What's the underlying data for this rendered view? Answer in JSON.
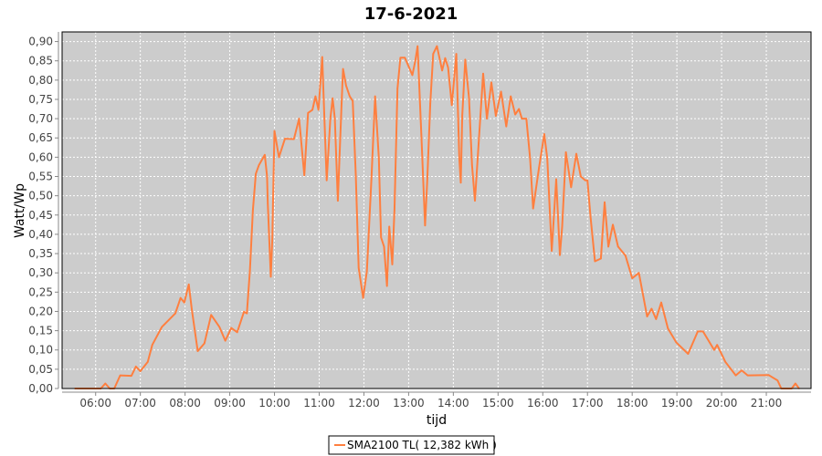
{
  "chart_data": {
    "type": "line",
    "title": "17-6-2021",
    "xlabel": "tijd",
    "ylabel": "Watt/Wp",
    "xlim": [
      "05:15",
      "22:00"
    ],
    "ylim": [
      0,
      0.925
    ],
    "grid": true,
    "legend_placement": "bottom",
    "plot_background": "#cccccc",
    "x_ticks": [
      "06:00",
      "07:00",
      "08:00",
      "09:00",
      "10:00",
      "11:00",
      "12:00",
      "13:00",
      "14:00",
      "15:00",
      "16:00",
      "17:00",
      "18:00",
      "19:00",
      "20:00",
      "21:00"
    ],
    "y_ticks": [
      "0,00",
      "0,05",
      "0,10",
      "0,15",
      "0,20",
      "0,25",
      "0,30",
      "0,35",
      "0,40",
      "0,45",
      "0,50",
      "0,55",
      "0,60",
      "0,65",
      "0,70",
      "0,75",
      "0,80",
      "0,85",
      "0,90"
    ],
    "series": [
      {
        "name": "SMA2100 TL( 12,382 kWh )",
        "color": "#ff7f3f",
        "points": [
          [
            "05:32",
            0
          ],
          [
            "06:07",
            0
          ],
          [
            "06:13",
            0.013
          ],
          [
            "06:19",
            0
          ],
          [
            "06:25",
            0
          ],
          [
            "06:33",
            0.034
          ],
          [
            "06:48",
            0.033
          ],
          [
            "06:54",
            0.057
          ],
          [
            "07:00",
            0.045
          ],
          [
            "07:10",
            0.069
          ],
          [
            "07:16",
            0.113
          ],
          [
            "07:29",
            0.16
          ],
          [
            "07:47",
            0.195
          ],
          [
            "07:54",
            0.235
          ],
          [
            "07:59",
            0.223
          ],
          [
            "08:05",
            0.27
          ],
          [
            "08:09",
            0.205
          ],
          [
            "08:17",
            0.097
          ],
          [
            "08:26",
            0.117
          ],
          [
            "08:35",
            0.191
          ],
          [
            "08:46",
            0.16
          ],
          [
            "08:54",
            0.124
          ],
          [
            "09:02",
            0.157
          ],
          [
            "09:10",
            0.146
          ],
          [
            "09:19",
            0.199
          ],
          [
            "09:23",
            0.195
          ],
          [
            "09:27",
            0.305
          ],
          [
            "09:31",
            0.463
          ],
          [
            "09:35",
            0.557
          ],
          [
            "09:39",
            0.579
          ],
          [
            "09:47",
            0.606
          ],
          [
            "09:50",
            0.55
          ],
          [
            "09:51",
            0.48
          ],
          [
            "09:55",
            0.29
          ],
          [
            "09:57",
            0.385
          ],
          [
            "10:00",
            0.668
          ],
          [
            "10:06",
            0.6
          ],
          [
            "10:14",
            0.648
          ],
          [
            "10:26",
            0.647
          ],
          [
            "10:33",
            0.7
          ],
          [
            "10:40",
            0.553
          ],
          [
            "10:45",
            0.715
          ],
          [
            "10:51",
            0.723
          ],
          [
            "10:55",
            0.758
          ],
          [
            "10:59",
            0.723
          ],
          [
            "11:04",
            0.86
          ],
          [
            "11:07",
            0.7
          ],
          [
            "11:10",
            0.54
          ],
          [
            "11:15",
            0.7
          ],
          [
            "11:18",
            0.753
          ],
          [
            "11:21",
            0.7
          ],
          [
            "11:25",
            0.487
          ],
          [
            "11:30",
            0.739
          ],
          [
            "11:32",
            0.829
          ],
          [
            "11:36",
            0.786
          ],
          [
            "11:41",
            0.758
          ],
          [
            "11:45",
            0.746
          ],
          [
            "11:49",
            0.557
          ],
          [
            "11:53",
            0.313
          ],
          [
            "11:59",
            0.235
          ],
          [
            "12:04",
            0.305
          ],
          [
            "12:10",
            0.54
          ],
          [
            "12:15",
            0.758
          ],
          [
            "12:20",
            0.597
          ],
          [
            "12:23",
            0.392
          ],
          [
            "12:27",
            0.368
          ],
          [
            "12:31",
            0.266
          ],
          [
            "12:34",
            0.42
          ],
          [
            "12:38",
            0.322
          ],
          [
            "12:41",
            0.463
          ],
          [
            "12:45",
            0.778
          ],
          [
            "12:49",
            0.858
          ],
          [
            "12:55",
            0.858
          ],
          [
            "13:05",
            0.813
          ],
          [
            "13:09",
            0.85
          ],
          [
            "13:12",
            0.888
          ],
          [
            "13:17",
            0.66
          ],
          [
            "13:22",
            0.423
          ],
          [
            "13:25",
            0.54
          ],
          [
            "13:29",
            0.739
          ],
          [
            "13:33",
            0.868
          ],
          [
            "13:38",
            0.888
          ],
          [
            "13:45",
            0.825
          ],
          [
            "13:49",
            0.857
          ],
          [
            "13:53",
            0.833
          ],
          [
            "13:58",
            0.735
          ],
          [
            "14:04",
            0.868
          ],
          [
            "14:08",
            0.597
          ],
          [
            "14:10",
            0.534
          ],
          [
            "14:12",
            0.707
          ],
          [
            "14:16",
            0.853
          ],
          [
            "14:21",
            0.754
          ],
          [
            "14:25",
            0.58
          ],
          [
            "14:29",
            0.487
          ],
          [
            "14:34",
            0.637
          ],
          [
            "14:40",
            0.817
          ],
          [
            "14:45",
            0.7
          ],
          [
            "14:51",
            0.794
          ],
          [
            "14:57",
            0.707
          ],
          [
            "15:04",
            0.77
          ],
          [
            "15:11",
            0.68
          ],
          [
            "15:17",
            0.758
          ],
          [
            "15:23",
            0.711
          ],
          [
            "15:28",
            0.725
          ],
          [
            "15:32",
            0.7
          ],
          [
            "15:38",
            0.7
          ],
          [
            "15:43",
            0.597
          ],
          [
            "15:47",
            0.467
          ],
          [
            "15:55",
            0.573
          ],
          [
            "16:02",
            0.66
          ],
          [
            "16:06",
            0.597
          ],
          [
            "16:12",
            0.357
          ],
          [
            "16:18",
            0.543
          ],
          [
            "16:23",
            0.346
          ],
          [
            "16:26",
            0.42
          ],
          [
            "16:31",
            0.613
          ],
          [
            "16:38",
            0.522
          ],
          [
            "16:45",
            0.609
          ],
          [
            "16:51",
            0.55
          ],
          [
            "16:57",
            0.54
          ],
          [
            "17:00",
            0.54
          ],
          [
            "17:04",
            0.447
          ],
          [
            "17:10",
            0.33
          ],
          [
            "17:18",
            0.337
          ],
          [
            "17:23",
            0.483
          ],
          [
            "17:28",
            0.368
          ],
          [
            "17:34",
            0.425
          ],
          [
            "17:41",
            0.368
          ],
          [
            "17:51",
            0.345
          ],
          [
            "18:00",
            0.286
          ],
          [
            "18:09",
            0.3
          ],
          [
            "18:20",
            0.187
          ],
          [
            "18:26",
            0.207
          ],
          [
            "18:32",
            0.18
          ],
          [
            "18:39",
            0.223
          ],
          [
            "18:48",
            0.156
          ],
          [
            "18:59",
            0.12
          ],
          [
            "19:15",
            0.09
          ],
          [
            "19:28",
            0.148
          ],
          [
            "19:35",
            0.148
          ],
          [
            "19:50",
            0.1
          ],
          [
            "19:54",
            0.113
          ],
          [
            "20:05",
            0.069
          ],
          [
            "20:19",
            0.034
          ],
          [
            "20:27",
            0.047
          ],
          [
            "20:35",
            0.034
          ],
          [
            "21:03",
            0.035
          ],
          [
            "21:15",
            0.021
          ],
          [
            "21:20",
            0
          ],
          [
            "21:34",
            0
          ],
          [
            "21:39",
            0.013
          ],
          [
            "21:44",
            0
          ]
        ]
      }
    ]
  }
}
